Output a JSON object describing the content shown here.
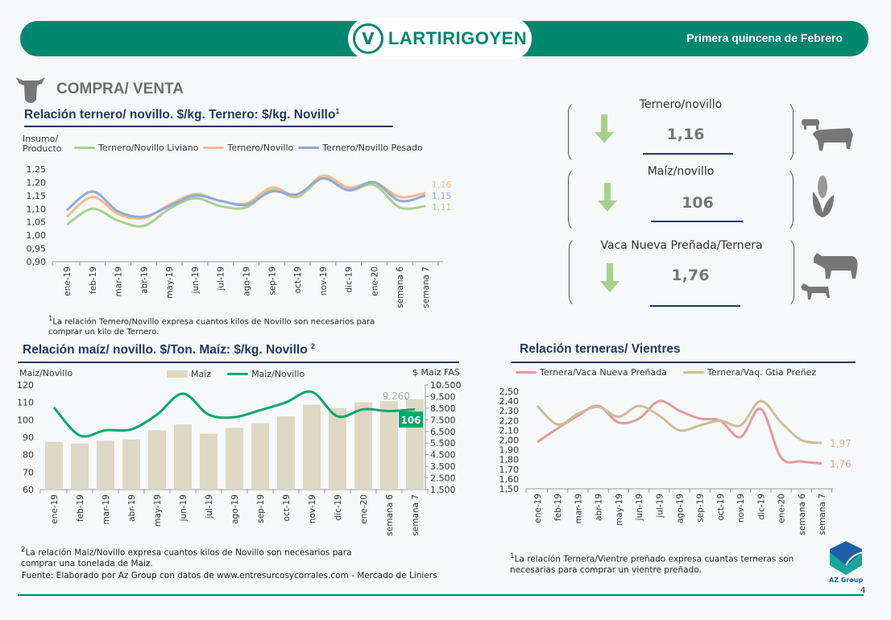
{
  "header": {
    "brand": "LARTIRIGOYEN",
    "brand_mark": "V",
    "period": "Primera quincena de Febrero"
  },
  "section": {
    "title": "COMPRA/ VENTA"
  },
  "colors": {
    "green": "#00876f",
    "navy": "#1f3a5f",
    "arrow": "#a8d08d"
  },
  "summary": [
    {
      "title": "Ternero/novillo",
      "value": "1,16",
      "trend": "down"
    },
    {
      "title": "Maíz/novillo",
      "value": "106",
      "trend": "down"
    },
    {
      "title": "Vaca Nueva Preñada/Ternera",
      "value": "1,76",
      "trend": "down"
    }
  ],
  "chart1": {
    "title": "Relación ternero/ novillo. $/kg. Ternero: $/kg. Novillo",
    "title_sup": "1",
    "ylabel_line1": "Insumo/",
    "ylabel_line2": "Producto",
    "note": "La relación Ternero/Novillo expresa cuantos kilos de Novillo son necesarios para comprar un kilo de Ternero.",
    "note_sup": "1"
  },
  "chart2": {
    "title": "Relación maíz/ novillo. $/Ton. Maíz: $/kg. Novillo",
    "title_sup": "2",
    "ylabel": "Maiz/Novillo",
    "y2label": "$ Maiz FAS",
    "note": "La relación Maiz/Novillo expresa cuantos kilos de Novillo son necesarios para comprar una tonelada de Maiz.",
    "note_sup": "2",
    "source": "Fuente: Elaborado por Az Group con datos de www.entresurcosycorrales.com - Mercado de Liniers"
  },
  "chart3": {
    "title": "Relación terneras/ Vientres",
    "note": "La relación Ternera/Vientre preñado expresa cuantas terneras son necesarias para comprar un vientre preñado.",
    "note_sup": "1"
  },
  "footer": {
    "company": "AZ Group",
    "page": "4"
  },
  "chart_data": [
    {
      "type": "line",
      "categories": [
        "ene-19",
        "feb-19",
        "mar-19",
        "abr-19",
        "may-19",
        "jun-19",
        "jul-19",
        "ago-19",
        "sep-19",
        "oct-19",
        "nov-19",
        "dic-19",
        "ene-20",
        "semana 6",
        "semana 7"
      ],
      "ylim": [
        0.9,
        1.25
      ],
      "yticks": [
        "0,90",
        "0,95",
        "1,00",
        "1,05",
        "1,10",
        "1,15",
        "1,20",
        "1,25"
      ],
      "series": [
        {
          "name": "Ternero/Novillo Liviano",
          "color": "#a9d18e",
          "end_label": "1,11",
          "values": [
            1.04,
            1.1,
            1.055,
            1.035,
            1.1,
            1.14,
            1.11,
            1.105,
            1.17,
            1.145,
            1.215,
            1.17,
            1.19,
            1.105,
            1.11
          ]
        },
        {
          "name": "Ternero/Novillo",
          "color": "#f8b98a",
          "end_label": "1,16",
          "values": [
            1.07,
            1.145,
            1.08,
            1.065,
            1.115,
            1.155,
            1.13,
            1.12,
            1.18,
            1.15,
            1.225,
            1.18,
            1.2,
            1.145,
            1.16
          ]
        },
        {
          "name": "Ternero/Novillo Pesado",
          "color": "#8faadc",
          "end_label": "1,15",
          "values": [
            1.095,
            1.165,
            1.09,
            1.07,
            1.11,
            1.15,
            1.13,
            1.115,
            1.165,
            1.155,
            1.215,
            1.17,
            1.2,
            1.13,
            1.15
          ]
        }
      ]
    },
    {
      "type": "bar+line",
      "categories": [
        "ene-19",
        "feb-19",
        "mar-19",
        "abr-19",
        "may-19",
        "jun-19",
        "jul-19",
        "ago-19",
        "sep-19",
        "oct-19",
        "nov-19",
        "dic-19",
        "ene-20",
        "semana 6",
        "semana 7"
      ],
      "ylim": [
        60,
        120
      ],
      "yticks": [
        "60",
        "70",
        "80",
        "90",
        "100",
        "110",
        "120"
      ],
      "y2lim": [
        1500,
        10500
      ],
      "y2ticks": [
        "1.500",
        "2.500",
        "3.500",
        "4.500",
        "5.500",
        "6.500",
        "7.500",
        "8.500",
        "9.500",
        "10.500"
      ],
      "bars": {
        "name": "Maiz",
        "color": "#ddd8c4",
        "end_label": "9.260",
        "values": [
          5600,
          5450,
          5700,
          5800,
          6600,
          7100,
          6300,
          6800,
          7200,
          7800,
          8800,
          8500,
          9000,
          9100,
          9260
        ]
      },
      "line": {
        "name": "Maiz/Novillo",
        "color": "#00a86b",
        "end_label": "106",
        "values": [
          107,
          91,
          94,
          94.5,
          103,
          115,
          103,
          101.5,
          105.5,
          110,
          116,
          102,
          106,
          105,
          106
        ]
      }
    },
    {
      "type": "line",
      "categories": [
        "ene-19",
        "feb-19",
        "mar-19",
        "abr-19",
        "may-19",
        "jun-19",
        "jul-19",
        "ago-19",
        "sep-19",
        "oct-19",
        "nov-19",
        "dic-19",
        "ene-20",
        "semana 6",
        "semana 7"
      ],
      "ylim": [
        1.5,
        2.5
      ],
      "yticks": [
        "1,50",
        "1,60",
        "1,70",
        "1,80",
        "1,90",
        "2,00",
        "2,10",
        "2,20",
        "2,30",
        "2,40",
        "2,50"
      ],
      "series": [
        {
          "name": "Ternera/Vaca Nueva Preñada",
          "color": "#e39a9a",
          "end_label": "1,76",
          "values": [
            1.98,
            2.12,
            2.25,
            2.35,
            2.18,
            2.22,
            2.4,
            2.3,
            2.22,
            2.2,
            2.03,
            2.32,
            1.82,
            1.78,
            1.76
          ]
        },
        {
          "name": "Ternera/Vaq. Gtia Preñez",
          "color": "#c9bf98",
          "end_label": "1,97",
          "values": [
            2.35,
            2.16,
            2.27,
            2.34,
            2.24,
            2.35,
            2.25,
            2.1,
            2.15,
            2.2,
            2.15,
            2.4,
            2.18,
            2.0,
            1.97
          ]
        }
      ]
    }
  ]
}
